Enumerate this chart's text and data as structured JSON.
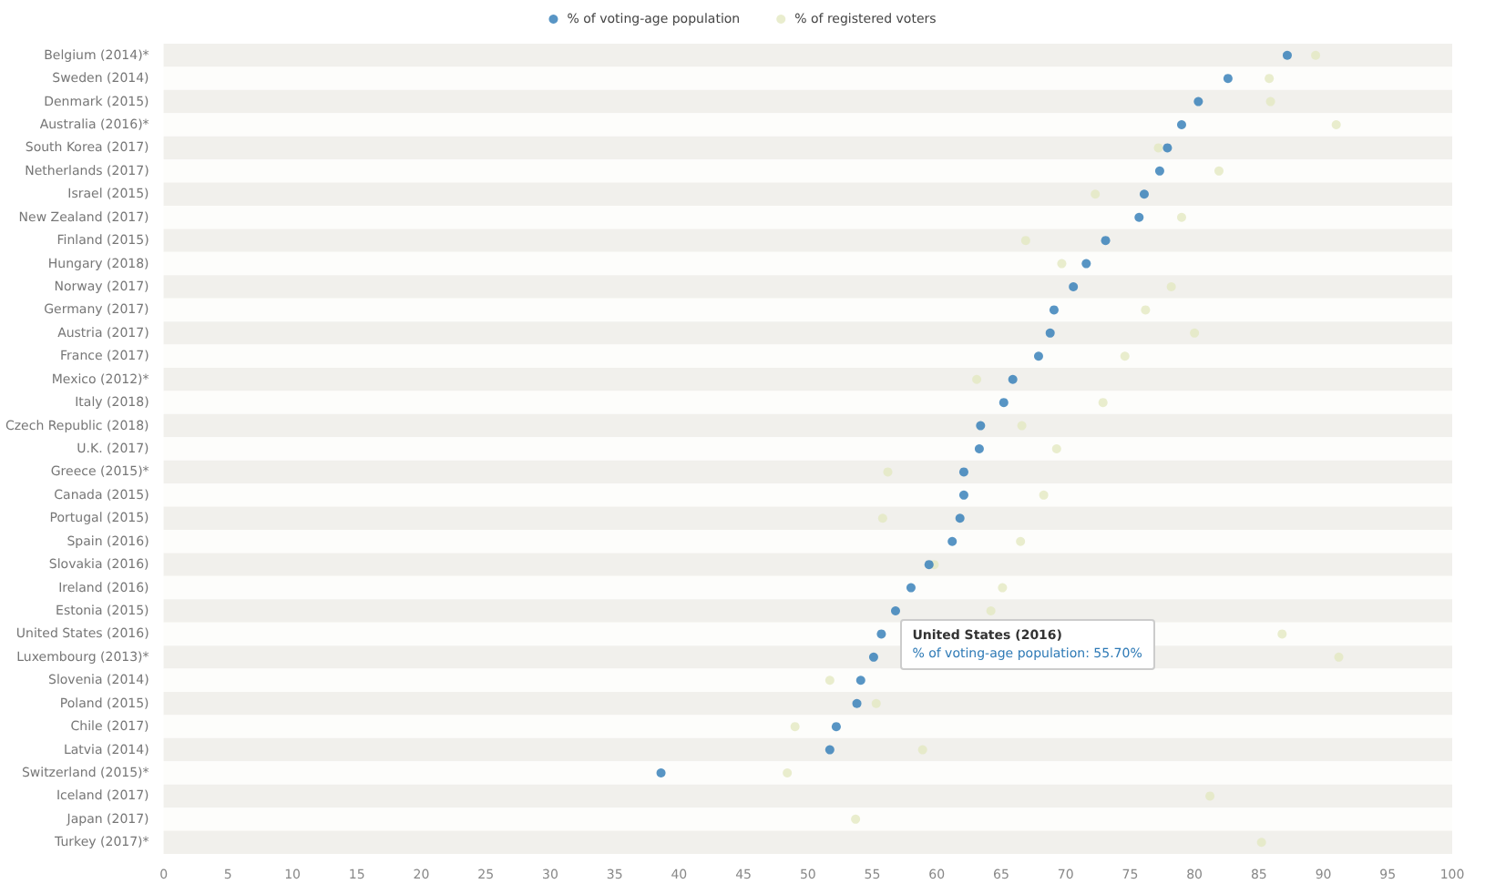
{
  "chart_data": {
    "type": "scatter",
    "categories": [
      "Belgium (2014)*",
      "Sweden (2014)",
      "Denmark (2015)",
      "Australia (2016)*",
      "South Korea (2017)",
      "Netherlands (2017)",
      "Israel (2015)",
      "New Zealand (2017)",
      "Finland (2015)",
      "Hungary (2018)",
      "Norway (2017)",
      "Germany (2017)",
      "Austria (2017)",
      "France (2017)",
      "Mexico (2012)*",
      "Italy (2018)",
      "Czech Republic (2018)",
      "U.K. (2017)",
      "Greece (2015)*",
      "Canada (2015)",
      "Portugal (2015)",
      "Spain (2016)",
      "Slovakia (2016)",
      "Ireland (2016)",
      "Estonia (2015)",
      "United States (2016)",
      "Luxembourg (2013)*",
      "Slovenia (2014)",
      "Poland (2015)",
      "Chile (2017)",
      "Latvia (2014)",
      "Switzerland (2015)*",
      "Iceland (2017)",
      "Japan (2017)",
      "Turkey (2017)*"
    ],
    "orientation": "horizontal",
    "series": [
      {
        "name": "% of voting-age population",
        "color": "#2e7ab6",
        "values": [
          87.2,
          82.6,
          80.3,
          79.0,
          77.9,
          77.3,
          76.1,
          75.7,
          73.1,
          71.6,
          70.6,
          69.1,
          68.8,
          67.9,
          65.9,
          65.2,
          63.4,
          63.3,
          62.1,
          62.1,
          61.8,
          61.2,
          59.4,
          58.0,
          56.8,
          55.7,
          55.1,
          54.1,
          53.8,
          52.2,
          51.7,
          38.6,
          null,
          null,
          null
        ]
      },
      {
        "name": "% of registered voters",
        "color": "#e3e8c2",
        "values": [
          89.4,
          85.8,
          85.9,
          91.0,
          77.2,
          81.9,
          72.3,
          79.0,
          66.9,
          69.7,
          78.2,
          76.2,
          80.0,
          74.6,
          63.1,
          72.9,
          66.6,
          69.3,
          56.2,
          68.3,
          55.8,
          66.5,
          59.8,
          65.1,
          64.2,
          86.8,
          91.2,
          51.7,
          55.3,
          49.0,
          58.9,
          48.4,
          81.2,
          53.7,
          85.2
        ]
      }
    ],
    "xlim": [
      0,
      100
    ],
    "xticks": [
      0,
      5,
      10,
      15,
      20,
      25,
      30,
      35,
      40,
      45,
      50,
      55,
      60,
      65,
      70,
      75,
      80,
      85,
      90,
      95,
      100
    ],
    "legend": "top",
    "marker": "circle",
    "annotations": [
      {
        "text": "United States (2016)\n% of voting-age population: 55.70%",
        "x": 55.7,
        "y": "United States (2016)"
      }
    ]
  }
}
